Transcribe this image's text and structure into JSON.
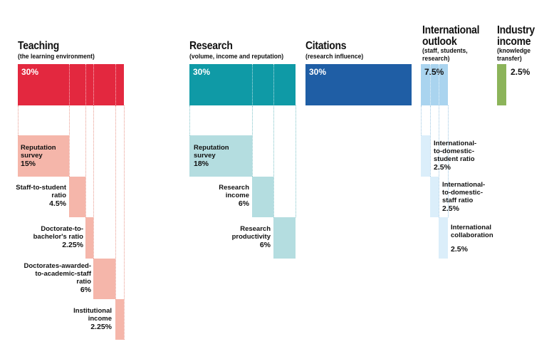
{
  "colors": {
    "teaching_main": "#e3283f",
    "teaching_sub": "#f5b6aa",
    "teaching_line": "#e99a8e",
    "research_main": "#0f9aa6",
    "research_sub": "#b4dde0",
    "research_line": "#7fc4c9",
    "citations_main": "#1f5ea5",
    "intl_main": "#aad4ef",
    "intl_sub": "#dbeefa",
    "intl_line": "#9cc6e2",
    "industry_main": "#8cb45a"
  },
  "teaching": {
    "title": "Teaching",
    "subtitle": "(the learning environment)",
    "total": "30%",
    "items": [
      {
        "label_lines": [
          "Reputation",
          "survey"
        ],
        "value": "15%"
      },
      {
        "label_lines": [
          "Staff-to-student",
          "ratio"
        ],
        "value": "4.5%"
      },
      {
        "label_lines": [
          "Doctorate-to-",
          "bachelor's ratio"
        ],
        "value": "2.25%"
      },
      {
        "label_lines": [
          "Doctorates-awarded-",
          "to-academic-staff",
          "ratio"
        ],
        "value": "6%"
      },
      {
        "label_lines": [
          "Institutional",
          "income"
        ],
        "value": "2.25%"
      }
    ]
  },
  "research": {
    "title": "Research",
    "subtitle": "(volume, income and reputation)",
    "total": "30%",
    "items": [
      {
        "label_lines": [
          "Reputation",
          "survey"
        ],
        "value": "18%"
      },
      {
        "label_lines": [
          "Research",
          "income"
        ],
        "value": "6%"
      },
      {
        "label_lines": [
          "Research",
          "productivity"
        ],
        "value": "6%"
      }
    ]
  },
  "citations": {
    "title": "Citations",
    "subtitle": "(research influence)",
    "total": "30%"
  },
  "international": {
    "title_lines": [
      "International",
      "outlook"
    ],
    "subtitle_lines": [
      "(staff, students,",
      "research)"
    ],
    "total": "7.5%",
    "items": [
      {
        "label_lines": [
          "International-",
          "to-domestic-",
          "student ratio"
        ],
        "value": "2.5%"
      },
      {
        "label_lines": [
          "International-",
          "to-domestic-",
          "staff ratio"
        ],
        "value": "2.5%"
      },
      {
        "label_lines": [
          "International",
          "collaboration"
        ],
        "value": "2.5%"
      }
    ]
  },
  "industry": {
    "title_lines": [
      "Industry",
      "income"
    ],
    "subtitle_lines": [
      "(knowledge",
      "transfer)"
    ],
    "total": "2.5%"
  }
}
